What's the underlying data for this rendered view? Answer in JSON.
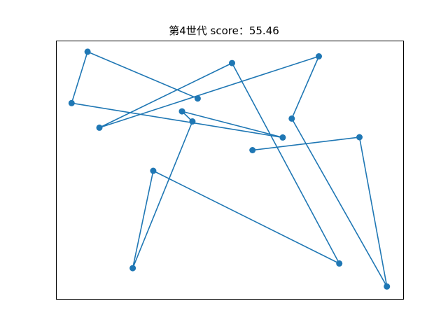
{
  "chart_data": {
    "type": "line",
    "title": "第4世代 score：55.46",
    "xlabel": "",
    "ylabel": "",
    "xlim": [
      0,
      1
    ],
    "ylim": [
      0,
      1
    ],
    "grid": false,
    "axis_ticks": false,
    "markers": true,
    "color": "#1f77b4",
    "series": [
      {
        "points": [
          [
            0.566,
            0.576
          ],
          [
            0.874,
            0.626
          ],
          [
            0.953,
            0.048
          ],
          [
            0.679,
            0.698
          ],
          [
            0.757,
            0.939
          ],
          [
            0.125,
            0.663
          ],
          [
            0.507,
            0.913
          ],
          [
            0.816,
            0.137
          ],
          [
            0.28,
            0.496
          ],
          [
            0.221,
            0.119
          ],
          [
            0.393,
            0.687
          ],
          [
            0.363,
            0.726
          ],
          [
            0.653,
            0.625
          ],
          [
            0.045,
            0.758
          ],
          [
            0.091,
            0.957
          ],
          [
            0.408,
            0.776
          ]
        ]
      }
    ]
  }
}
